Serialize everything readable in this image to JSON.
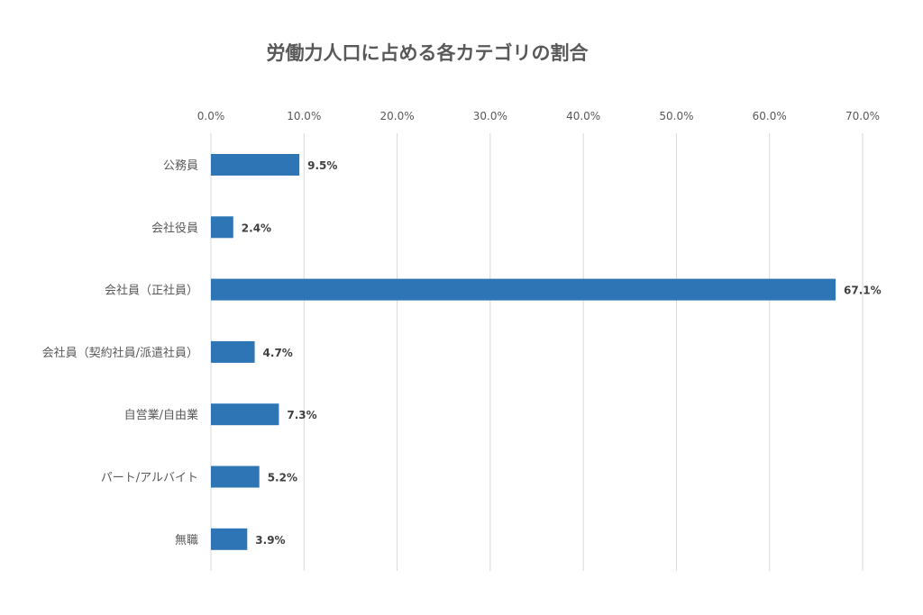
{
  "chart_data": {
    "type": "bar",
    "orientation": "horizontal",
    "title": "労働力人口に占める各カテゴリの割合",
    "categories": [
      "公務員",
      "会社役員",
      "会社員（正社員）",
      "会社員（契約社員/派遣社員）",
      "自営業/自由業",
      "パート/アルバイト",
      "無職"
    ],
    "values": [
      9.5,
      2.4,
      67.1,
      4.7,
      7.3,
      5.2,
      3.9
    ],
    "data_labels": [
      "9.5%",
      "2.4%",
      "67.1%",
      "4.7%",
      "7.3%",
      "5.2%",
      "3.9%"
    ],
    "x_ticks": [
      "0.0%",
      "10.0%",
      "20.0%",
      "30.0%",
      "40.0%",
      "50.0%",
      "60.0%",
      "70.0%"
    ],
    "xlim": [
      0,
      70
    ],
    "axis_position": "top",
    "grid": true,
    "bar_color": "#2e75b6"
  }
}
